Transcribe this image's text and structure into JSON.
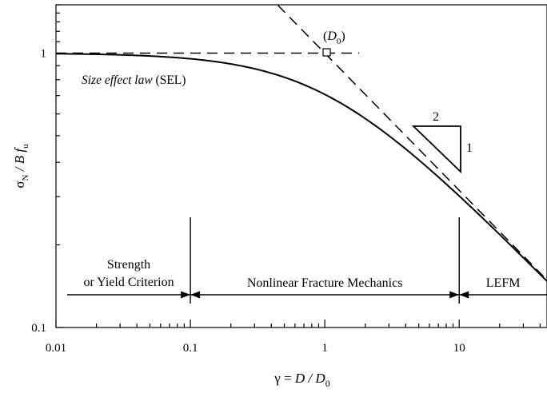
{
  "chart_data": {
    "type": "line",
    "xscale": "log",
    "yscale": "log",
    "xlim": [
      0.01,
      45
    ],
    "ylim": [
      0.1,
      1.5
    ],
    "grid": false,
    "xlabel": {
      "prefix": "γ = ",
      "main": "D / D",
      "sub": "0"
    },
    "ylabel": {
      "sigma": "σ",
      "sigma_sub": "N",
      "rest": " / B f",
      "rest_sub": "u"
    },
    "x_ticks": [
      {
        "value": 0.01,
        "label": "0.01"
      },
      {
        "value": 0.1,
        "label": "0.1"
      },
      {
        "value": 1,
        "label": "1"
      },
      {
        "value": 10,
        "label": "10"
      }
    ],
    "y_ticks": [
      {
        "value": 1,
        "label": "1"
      },
      {
        "value": 0.1,
        "label": "0.1"
      }
    ],
    "series": [
      {
        "style": "solid",
        "formula": "y = 1 / sqrt(1 + x)",
        "x": [
          0.01,
          0.02,
          0.05,
          0.1,
          0.2,
          0.5,
          1,
          2,
          5,
          10,
          20,
          45
        ],
        "y": [
          0.995,
          0.99,
          0.976,
          0.953,
          0.913,
          0.816,
          0.707,
          0.577,
          0.408,
          0.302,
          0.218,
          0.147
        ]
      },
      {
        "style": "dashed",
        "x": [
          0.01,
          1.8
        ],
        "y": [
          1,
          1
        ]
      },
      {
        "style": "dashed",
        "x": [
          0.2,
          45
        ],
        "y": [
          2.236,
          0.149
        ]
      }
    ],
    "annotations": {
      "sel_italic": "Size effect law",
      "sel_plain": " (SEL)",
      "d0_open": "(",
      "d0_main": "D",
      "d0_sub": "0",
      "d0_close": ")",
      "slope_run": "2",
      "slope_rise": "1"
    },
    "regions": [
      {
        "lines": [
          "Strength",
          "or Yield Criterion"
        ],
        "from": 0.01,
        "to": 0.1
      },
      {
        "lines": [
          "Nonlinear Fracture Mechanics"
        ],
        "from": 0.1,
        "to": 10
      },
      {
        "lines": [
          "LEFM"
        ],
        "from": 10,
        "to": 45
      }
    ]
  }
}
